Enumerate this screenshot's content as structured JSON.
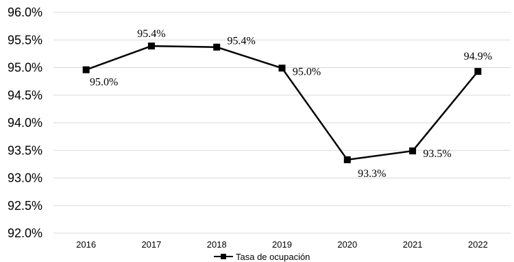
{
  "chart_data": {
    "type": "line",
    "title": "",
    "xlabel": "",
    "ylabel": "",
    "x": [
      "2016",
      "2017",
      "2018",
      "2019",
      "2020",
      "2021",
      "2022"
    ],
    "series": [
      {
        "name": "Tasa de ocupación",
        "values": [
          94.96,
          95.39,
          95.37,
          94.99,
          93.33,
          93.49,
          94.93
        ],
        "data_labels": [
          "95.0%",
          "95.4%",
          "95.4%",
          "95.0%",
          "93.3%",
          "93.5%",
          "94.9%"
        ],
        "color": "#000000",
        "marker": "square"
      }
    ],
    "ylim": [
      92.0,
      96.0
    ],
    "yticks": [
      "92.0%",
      "92.5%",
      "93.0%",
      "93.5%",
      "94.0%",
      "94.5%",
      "95.0%",
      "95.5%",
      "96.0%"
    ],
    "grid": true,
    "legend": "bottom-center"
  }
}
